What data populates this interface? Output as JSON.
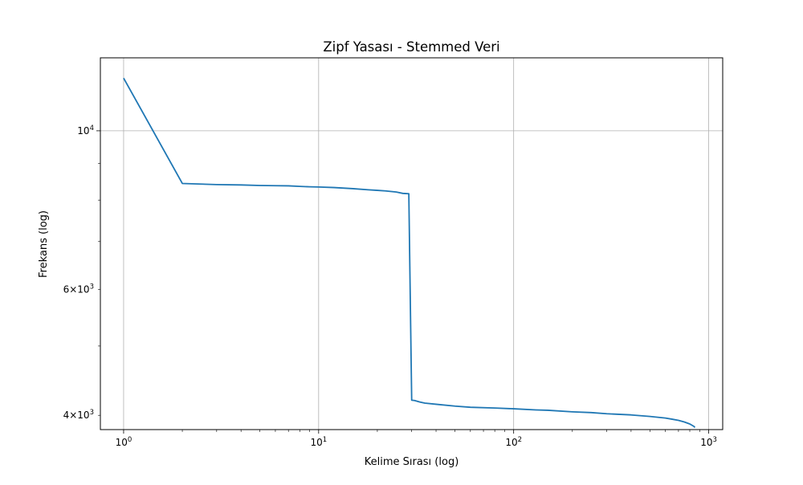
{
  "chart_data": {
    "type": "line",
    "title": "Zipf Yasası - Stemmed Veri",
    "xlabel": "Kelime Sırası (log)",
    "ylabel": "Frekans (log)",
    "x_scale": "log",
    "y_scale": "log",
    "xlim": [
      0.76,
      1180
    ],
    "ylim": [
      3820,
      12650
    ],
    "grid": true,
    "x_ticks": [
      {
        "value": 1,
        "base": "10",
        "exp": "0"
      },
      {
        "value": 10,
        "base": "10",
        "exp": "1"
      },
      {
        "value": 100,
        "base": "10",
        "exp": "2"
      },
      {
        "value": 1000,
        "base": "10",
        "exp": "3"
      }
    ],
    "y_major_ticks": [
      {
        "value": 10000,
        "mant": "",
        "base": "10",
        "exp": "4"
      }
    ],
    "y_minor_labeled_ticks": [
      {
        "value": 6000,
        "mant": "6",
        "base": "10",
        "exp": "3"
      },
      {
        "value": 4000,
        "mant": "4",
        "base": "10",
        "exp": "3"
      }
    ],
    "y_minor_ticks": [
      5000,
      7000,
      8000,
      9000
    ],
    "color": "#1f77b4",
    "series": [
      {
        "x": [
          1,
          2,
          3,
          4,
          5,
          6,
          7,
          8,
          9,
          10,
          12,
          15,
          18,
          20,
          22,
          25,
          27,
          28,
          29,
          30,
          31,
          33,
          35,
          40,
          50,
          60,
          80,
          100,
          130,
          150,
          200,
          250,
          300,
          400,
          500,
          600,
          650,
          700,
          750,
          800,
          820,
          840,
          850
        ],
        "y": [
          11850,
          8440,
          8410,
          8400,
          8385,
          8380,
          8375,
          8360,
          8350,
          8345,
          8330,
          8300,
          8270,
          8255,
          8240,
          8210,
          8175,
          8170,
          8165,
          4200,
          4195,
          4175,
          4160,
          4145,
          4120,
          4105,
          4095,
          4085,
          4070,
          4065,
          4045,
          4035,
          4020,
          4005,
          3985,
          3965,
          3950,
          3935,
          3915,
          3890,
          3875,
          3860,
          3845
        ]
      }
    ]
  }
}
